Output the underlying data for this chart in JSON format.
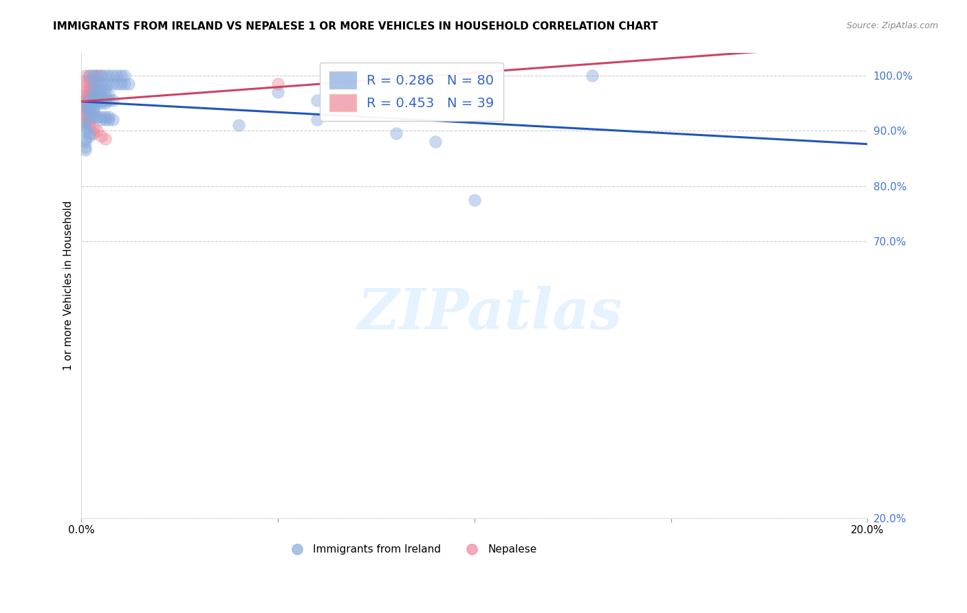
{
  "title": "IMMIGRANTS FROM IRELAND VS NEPALESE 1 OR MORE VEHICLES IN HOUSEHOLD CORRELATION CHART",
  "source": "Source: ZipAtlas.com",
  "ylabel": "1 or more Vehicles in Household",
  "legend_blue_label": "Immigrants from Ireland",
  "legend_pink_label": "Nepalese",
  "R_blue": 0.286,
  "N_blue": 80,
  "R_pink": 0.453,
  "N_pink": 39,
  "color_blue": "#88AADD",
  "color_pink": "#EE8899",
  "trendline_blue": "#2255BB",
  "trendline_pink": "#CC4466",
  "marker_size": 160,
  "marker_alpha": 0.45,
  "xlim": [
    0.0,
    0.2
  ],
  "ylim": [
    0.2,
    1.04
  ],
  "right_yticks": [
    1.0,
    0.9,
    0.8,
    0.7,
    0.2
  ],
  "grid_yticks": [
    1.0,
    0.9,
    0.8,
    0.7,
    0.2
  ],
  "blue_x": [
    0.002,
    0.003,
    0.004,
    0.005,
    0.006,
    0.007,
    0.008,
    0.009,
    0.01,
    0.011,
    0.003,
    0.004,
    0.005,
    0.006,
    0.007,
    0.008,
    0.009,
    0.01,
    0.011,
    0.012,
    0.003,
    0.004,
    0.005,
    0.006,
    0.004,
    0.005,
    0.006,
    0.007,
    0.002,
    0.003,
    0.004,
    0.005,
    0.003,
    0.004,
    0.005,
    0.006,
    0.007,
    0.008,
    0.002,
    0.003,
    0.004,
    0.005,
    0.006,
    0.001,
    0.002,
    0.001,
    0.002,
    0.003,
    0.002,
    0.003,
    0.002,
    0.003,
    0.003,
    0.004,
    0.005,
    0.006,
    0.007,
    0.005,
    0.006,
    0.007,
    0.008,
    0.001,
    0.001,
    0.001,
    0.001,
    0.002,
    0.002,
    0.001,
    0.001,
    0.001,
    0.001,
    0.05,
    0.06,
    0.07,
    0.06,
    0.04,
    0.08,
    0.09,
    0.1,
    0.13
  ],
  "blue_y": [
    0.999,
    0.999,
    0.999,
    0.999,
    0.999,
    0.999,
    0.999,
    0.999,
    0.999,
    0.999,
    0.985,
    0.985,
    0.985,
    0.985,
    0.985,
    0.985,
    0.985,
    0.985,
    0.985,
    0.985,
    0.975,
    0.975,
    0.975,
    0.975,
    0.965,
    0.965,
    0.965,
    0.965,
    0.96,
    0.96,
    0.96,
    0.96,
    0.955,
    0.955,
    0.955,
    0.955,
    0.955,
    0.955,
    0.95,
    0.95,
    0.95,
    0.95,
    0.95,
    0.945,
    0.945,
    0.94,
    0.94,
    0.94,
    0.935,
    0.935,
    0.93,
    0.93,
    0.925,
    0.925,
    0.925,
    0.925,
    0.925,
    0.92,
    0.92,
    0.92,
    0.92,
    0.915,
    0.91,
    0.905,
    0.9,
    0.895,
    0.89,
    0.885,
    0.88,
    0.87,
    0.865,
    0.97,
    0.955,
    0.935,
    0.92,
    0.91,
    0.895,
    0.88,
    0.775,
    1.0
  ],
  "pink_x": [
    0.001,
    0.002,
    0.003,
    0.004,
    0.005,
    0.001,
    0.002,
    0.003,
    0.004,
    0.001,
    0.002,
    0.003,
    0.001,
    0.002,
    0.003,
    0.001,
    0.002,
    0.003,
    0.001,
    0.002,
    0.001,
    0.002,
    0.001,
    0.002,
    0.001,
    0.001,
    0.001,
    0.001,
    0.001,
    0.001,
    0.002,
    0.002,
    0.002,
    0.003,
    0.004,
    0.003,
    0.005,
    0.006,
    0.05
  ],
  "pink_y": [
    0.999,
    0.999,
    0.999,
    0.999,
    0.999,
    0.99,
    0.99,
    0.99,
    0.99,
    0.98,
    0.98,
    0.98,
    0.97,
    0.97,
    0.97,
    0.965,
    0.965,
    0.965,
    0.96,
    0.96,
    0.955,
    0.955,
    0.95,
    0.95,
    0.945,
    0.94,
    0.935,
    0.93,
    0.925,
    0.92,
    0.92,
    0.915,
    0.91,
    0.905,
    0.9,
    0.895,
    0.89,
    0.885,
    0.985
  ]
}
